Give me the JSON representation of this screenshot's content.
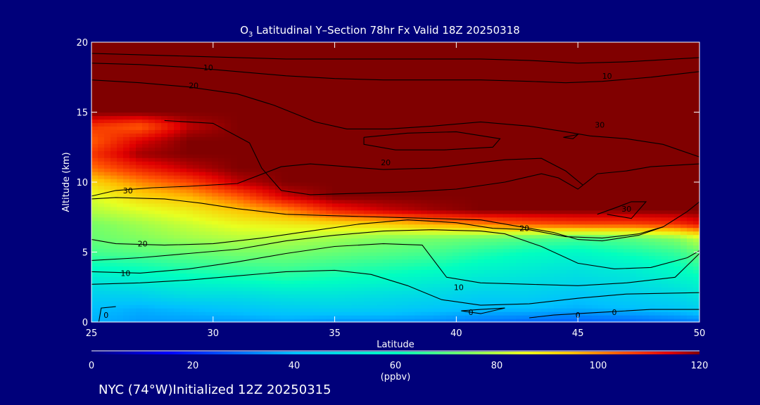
{
  "chart_data": {
    "type": "heatmap",
    "title_main": "O",
    "title_sub": "3",
    "title_rest": " Latitudinal Y–Section 78hr  Fx Valid 18Z 20250318",
    "xlabel": "Latitude",
    "ylabel": "Altitude (km)",
    "xlim": [
      25,
      50
    ],
    "ylim": [
      0,
      20
    ],
    "xticks": [
      "25",
      "30",
      "35",
      "40",
      "45",
      "50"
    ],
    "yticks": [
      "0",
      "5",
      "10",
      "15",
      "20"
    ],
    "colorbar": {
      "min": 0,
      "max": 120,
      "ticks": [
        "0",
        "20",
        "40",
        "60",
        "80",
        "100",
        "120"
      ],
      "unit": "(ppbv)"
    },
    "field": {
      "latitudes": [
        25,
        27,
        29,
        31,
        33,
        35,
        37,
        39,
        41,
        43,
        45,
        47,
        49,
        50
      ],
      "altitudes": [
        0,
        1,
        2,
        3,
        4,
        5,
        6,
        7,
        8,
        9,
        10,
        11,
        12,
        13,
        14,
        15,
        16,
        17,
        18,
        19,
        20
      ],
      "values": [
        [
          38,
          35,
          35,
          35,
          36,
          34,
          34,
          33,
          30,
          28,
          27,
          28,
          30,
          31
        ],
        [
          40,
          38,
          40,
          42,
          44,
          45,
          44,
          42,
          40,
          40,
          38,
          40,
          42,
          45
        ],
        [
          45,
          46,
          50,
          50,
          52,
          52,
          50,
          48,
          45,
          45,
          42,
          45,
          48,
          52
        ],
        [
          52,
          55,
          58,
          60,
          62,
          60,
          58,
          55,
          52,
          50,
          48,
          50,
          55,
          58
        ],
        [
          60,
          62,
          65,
          67,
          68,
          66,
          64,
          62,
          58,
          55,
          52,
          55,
          60,
          65
        ],
        [
          68,
          70,
          72,
          74,
          74,
          72,
          70,
          68,
          64,
          60,
          58,
          62,
          66,
          72
        ],
        [
          72,
          75,
          78,
          80,
          80,
          78,
          75,
          74,
          72,
          70,
          68,
          70,
          75,
          82
        ],
        [
          74,
          78,
          82,
          86,
          88,
          90,
          92,
          96,
          100,
          104,
          106,
          106,
          108,
          112
        ],
        [
          80,
          84,
          88,
          94,
          100,
          110,
          115,
          118,
          120,
          120,
          120,
          120,
          120,
          120
        ],
        [
          84,
          92,
          96,
          104,
          115,
          120,
          120,
          120,
          120,
          120,
          120,
          120,
          120,
          120
        ],
        [
          92,
          100,
          106,
          116,
          120,
          120,
          120,
          120,
          120,
          120,
          120,
          120,
          120,
          120
        ],
        [
          102,
          110,
          116,
          120,
          120,
          120,
          120,
          120,
          120,
          120,
          120,
          120,
          120,
          120
        ],
        [
          108,
          118,
          120,
          120,
          120,
          120,
          120,
          120,
          120,
          120,
          120,
          120,
          120,
          120
        ],
        [
          104,
          114,
          120,
          120,
          120,
          120,
          120,
          120,
          120,
          120,
          120,
          120,
          120,
          120
        ],
        [
          108,
          104,
          116,
          120,
          120,
          120,
          120,
          120,
          120,
          120,
          120,
          120,
          120,
          120
        ],
        [
          120,
          120,
          120,
          120,
          120,
          120,
          120,
          120,
          120,
          120,
          120,
          120,
          120,
          120
        ],
        [
          120,
          120,
          120,
          120,
          120,
          120,
          120,
          120,
          120,
          120,
          120,
          120,
          120,
          120
        ],
        [
          120,
          120,
          120,
          120,
          120,
          120,
          120,
          120,
          120,
          120,
          120,
          120,
          120,
          120
        ],
        [
          120,
          120,
          120,
          120,
          120,
          120,
          120,
          120,
          120,
          120,
          120,
          120,
          120,
          120
        ],
        [
          120,
          120,
          120,
          120,
          120,
          120,
          120,
          120,
          120,
          120,
          120,
          120,
          120,
          120
        ],
        [
          120,
          120,
          120,
          120,
          120,
          120,
          120,
          120,
          120,
          120,
          120,
          120,
          120,
          120
        ]
      ]
    },
    "contours": [
      {
        "label": "0",
        "points": [
          [
            25.3,
            0
          ],
          [
            25.4,
            1.0
          ],
          [
            26.0,
            1.1
          ]
        ]
      },
      {
        "label": "0",
        "points": [
          [
            40.2,
            0.8
          ],
          [
            41.0,
            0.9
          ],
          [
            42.0,
            1.0
          ],
          [
            41.0,
            0.6
          ],
          [
            40.2,
            0.8
          ]
        ]
      },
      {
        "label": "0",
        "points": [
          [
            43.0,
            0.3
          ],
          [
            44.0,
            0.5
          ],
          [
            45.0,
            0.6
          ],
          [
            46.0,
            0.7
          ],
          [
            47.0,
            0.8
          ],
          [
            48.0,
            0.9
          ],
          [
            50.0,
            0.9
          ]
        ]
      },
      {
        "label": "10",
        "points": [
          [
            25,
            2.7
          ],
          [
            27,
            2.8
          ],
          [
            29,
            3.0
          ],
          [
            31,
            3.3
          ],
          [
            33,
            3.6
          ],
          [
            35,
            3.7
          ],
          [
            36.5,
            3.4
          ],
          [
            38,
            2.6
          ],
          [
            39.4,
            1.6
          ],
          [
            41,
            1.2
          ],
          [
            43,
            1.3
          ],
          [
            45,
            1.7
          ],
          [
            47,
            2.0
          ],
          [
            50,
            2.1
          ]
        ]
      },
      {
        "label": "10",
        "points": [
          [
            25,
            3.6
          ],
          [
            27,
            3.5
          ],
          [
            29,
            3.8
          ],
          [
            31,
            4.3
          ],
          [
            33,
            4.9
          ],
          [
            35,
            5.4
          ],
          [
            37,
            5.6
          ],
          [
            38.6,
            5.5
          ],
          [
            39.6,
            3.2
          ],
          [
            41,
            2.8
          ],
          [
            43,
            2.7
          ],
          [
            45,
            2.6
          ],
          [
            47,
            2.8
          ],
          [
            49,
            3.2
          ],
          [
            50,
            4.9
          ]
        ]
      },
      {
        "label": "20",
        "points": [
          [
            25,
            4.4
          ],
          [
            27,
            4.6
          ],
          [
            29,
            4.9
          ],
          [
            31,
            5.2
          ],
          [
            33,
            5.8
          ],
          [
            35,
            6.2
          ],
          [
            37,
            6.5
          ],
          [
            39,
            6.6
          ],
          [
            41,
            6.5
          ],
          [
            42,
            6.3
          ],
          [
            43.5,
            5.4
          ],
          [
            45,
            4.2
          ],
          [
            46.5,
            3.8
          ],
          [
            48,
            3.9
          ],
          [
            49.5,
            4.6
          ],
          [
            50,
            5.1
          ]
        ]
      },
      {
        "label": "20",
        "points": [
          [
            25,
            5.9
          ],
          [
            26,
            5.6
          ],
          [
            28,
            5.5
          ],
          [
            30,
            5.6
          ],
          [
            32,
            6.0
          ],
          [
            34,
            6.5
          ],
          [
            36,
            7.0
          ],
          [
            38,
            7.3
          ],
          [
            40,
            7.1
          ],
          [
            41.5,
            6.7
          ],
          [
            43,
            6.6
          ],
          [
            44.5,
            6.1
          ],
          [
            46,
            6.0
          ],
          [
            47.5,
            6.3
          ],
          [
            48.5,
            6.8
          ]
        ]
      },
      {
        "label": "20",
        "points": [
          [
            25,
            8.8
          ],
          [
            26,
            8.9
          ],
          [
            28,
            8.8
          ],
          [
            29.5,
            8.5
          ],
          [
            31,
            8.1
          ],
          [
            33,
            7.7
          ],
          [
            35,
            7.6
          ],
          [
            37,
            7.5
          ],
          [
            39,
            7.4
          ],
          [
            41,
            7.3
          ],
          [
            42,
            7.0
          ],
          [
            44,
            6.4
          ],
          [
            45,
            5.9
          ],
          [
            46,
            5.8
          ],
          [
            47.5,
            6.2
          ],
          [
            48.5,
            6.8
          ],
          [
            49.5,
            7.9
          ],
          [
            50,
            8.6
          ]
        ]
      },
      {
        "label": "30",
        "points": [
          [
            25,
            9.0
          ],
          [
            26,
            9.4
          ],
          [
            27.5,
            9.6
          ],
          [
            29,
            9.7
          ],
          [
            31,
            9.9
          ],
          [
            32.8,
            11.1
          ],
          [
            34,
            11.3
          ],
          [
            35.5,
            11.1
          ],
          [
            37,
            10.9
          ],
          [
            39,
            11.0
          ],
          [
            40.5,
            11.3
          ],
          [
            42,
            11.6
          ],
          [
            43.5,
            11.7
          ],
          [
            44.5,
            10.8
          ],
          [
            45.2,
            9.8
          ]
        ]
      },
      {
        "label": "30",
        "points": [
          [
            45.8,
            7.7
          ],
          [
            46.6,
            8.2
          ],
          [
            47.2,
            8.6
          ],
          [
            47.8,
            8.6
          ],
          [
            47.2,
            7.4
          ],
          [
            46.2,
            7.7
          ]
        ]
      },
      {
        "label": "20",
        "points": [
          [
            36.2,
            13.2
          ],
          [
            38,
            13.5
          ],
          [
            40,
            13.6
          ],
          [
            41.8,
            13.1
          ],
          [
            41.5,
            12.5
          ],
          [
            39.5,
            12.3
          ],
          [
            37.5,
            12.3
          ],
          [
            36.2,
            12.7
          ],
          [
            36.2,
            13.2
          ]
        ]
      },
      {
        "label": "30",
        "points": [
          [
            44.4,
            13.2
          ],
          [
            45,
            13.4
          ],
          [
            44.8,
            13.1
          ],
          [
            44.4,
            13.2
          ]
        ]
      },
      {
        "label": "20",
        "points": [
          [
            28,
            14.4
          ],
          [
            30,
            14.2
          ],
          [
            31.5,
            12.8
          ],
          [
            32,
            11.0
          ],
          [
            32.8,
            9.4
          ],
          [
            34,
            9.1
          ],
          [
            36,
            9.2
          ],
          [
            38,
            9.3
          ],
          [
            40,
            9.5
          ],
          [
            42,
            10.0
          ],
          [
            43.5,
            10.6
          ],
          [
            44.2,
            10.3
          ],
          [
            45,
            9.5
          ],
          [
            45.8,
            10.6
          ],
          [
            47,
            10.8
          ],
          [
            48,
            11.1
          ],
          [
            50,
            11.3
          ]
        ]
      },
      {
        "label": "20",
        "points": [
          [
            25,
            17.3
          ],
          [
            27,
            17.1
          ],
          [
            29,
            16.8
          ],
          [
            31,
            16.3
          ],
          [
            32.5,
            15.5
          ],
          [
            33.5,
            14.8
          ],
          [
            34.2,
            14.3
          ],
          [
            35.5,
            13.8
          ],
          [
            37.2,
            13.8
          ],
          [
            39,
            14.0
          ],
          [
            41,
            14.3
          ],
          [
            43,
            14.0
          ],
          [
            44.5,
            13.6
          ],
          [
            45.5,
            13.3
          ],
          [
            47,
            13.1
          ],
          [
            48.5,
            12.7
          ],
          [
            50,
            11.8
          ]
        ]
      },
      {
        "label": "10",
        "points": [
          [
            25,
            18.5
          ],
          [
            27,
            18.4
          ],
          [
            29,
            18.2
          ],
          [
            31,
            17.9
          ],
          [
            33,
            17.6
          ],
          [
            35,
            17.4
          ],
          [
            37,
            17.3
          ],
          [
            39,
            17.3
          ],
          [
            41,
            17.3
          ],
          [
            43,
            17.2
          ],
          [
            44.5,
            17.1
          ],
          [
            46,
            17.2
          ],
          [
            48,
            17.5
          ],
          [
            50,
            17.9
          ]
        ]
      },
      {
        "label": "",
        "points": [
          [
            25,
            19.2
          ],
          [
            27,
            19.1
          ],
          [
            29,
            19.0
          ],
          [
            31,
            18.9
          ],
          [
            33,
            18.8
          ],
          [
            35,
            18.8
          ],
          [
            37,
            18.8
          ],
          [
            39,
            18.8
          ],
          [
            41,
            18.8
          ],
          [
            43,
            18.7
          ],
          [
            45,
            18.5
          ],
          [
            47,
            18.6
          ],
          [
            50,
            18.9
          ]
        ]
      }
    ],
    "contour_label_positions": [
      {
        "label": "0",
        "at": [
          25.6,
          0.5
        ]
      },
      {
        "label": "0",
        "at": [
          40.6,
          0.7
        ]
      },
      {
        "label": "0",
        "at": [
          45.0,
          0.5
        ]
      },
      {
        "label": "0",
        "at": [
          46.5,
          0.7
        ]
      },
      {
        "label": "10",
        "at": [
          26.4,
          3.5
        ]
      },
      {
        "label": "10",
        "at": [
          40.1,
          2.5
        ]
      },
      {
        "label": "20",
        "at": [
          27.1,
          5.6
        ]
      },
      {
        "label": "20",
        "at": [
          42.8,
          6.7
        ]
      },
      {
        "label": "30",
        "at": [
          26.5,
          9.4
        ]
      },
      {
        "label": "30",
        "at": [
          47.0,
          8.1
        ]
      },
      {
        "label": "20",
        "at": [
          37.1,
          11.4
        ]
      },
      {
        "label": "30",
        "at": [
          45.9,
          14.1
        ]
      },
      {
        "label": "20",
        "at": [
          29.2,
          16.9
        ]
      },
      {
        "label": "10",
        "at": [
          29.8,
          18.2
        ]
      },
      {
        "label": "10",
        "at": [
          46.2,
          17.6
        ]
      }
    ],
    "grid": false
  },
  "footer": "NYC (74°W)Initialized 12Z 20250315"
}
